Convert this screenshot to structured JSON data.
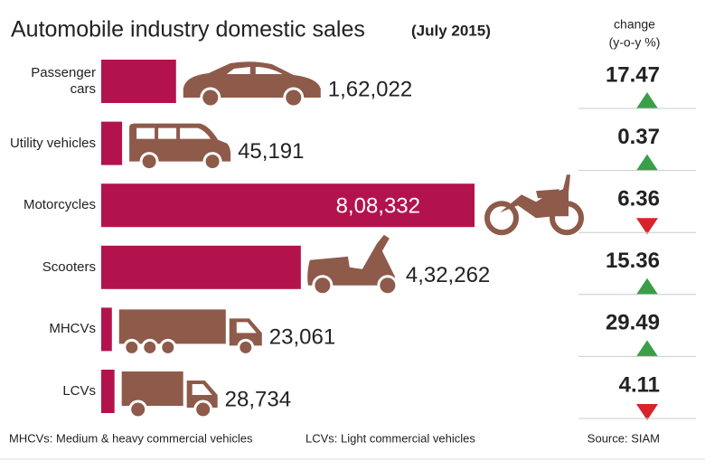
{
  "chart_data": {
    "type": "bar",
    "orientation": "horizontal",
    "title": "Automobile industry domestic sales",
    "subtitle": "(July 2015)",
    "categories": [
      "Passenger cars",
      "Utility vehicles",
      "Motorcycles",
      "Scooters",
      "MHCVs",
      "LCVs"
    ],
    "values": [
      162022,
      45191,
      808332,
      432262,
      23061,
      28734
    ],
    "value_labels": [
      "1,62,022",
      "45,191",
      "8,08,332",
      "4,32,262",
      "23,061",
      "28,734"
    ],
    "color": "#b3134c",
    "change": {
      "title": "change",
      "subtitle": "(y-o-y %)",
      "values": [
        17.47,
        0.37,
        -6.36,
        15.36,
        29.49,
        -4.11
      ],
      "value_labels": [
        "17.47",
        "0.37",
        "6.36",
        "15.36",
        "29.49",
        "4.11"
      ],
      "up_color": "#3a9f48",
      "down_color": "#d8232a"
    },
    "notes": [
      "MHCVs: Medium & heavy commercial vehicles",
      "LCVs: Light commercial vehicles"
    ],
    "source": "Source: SIAM"
  }
}
